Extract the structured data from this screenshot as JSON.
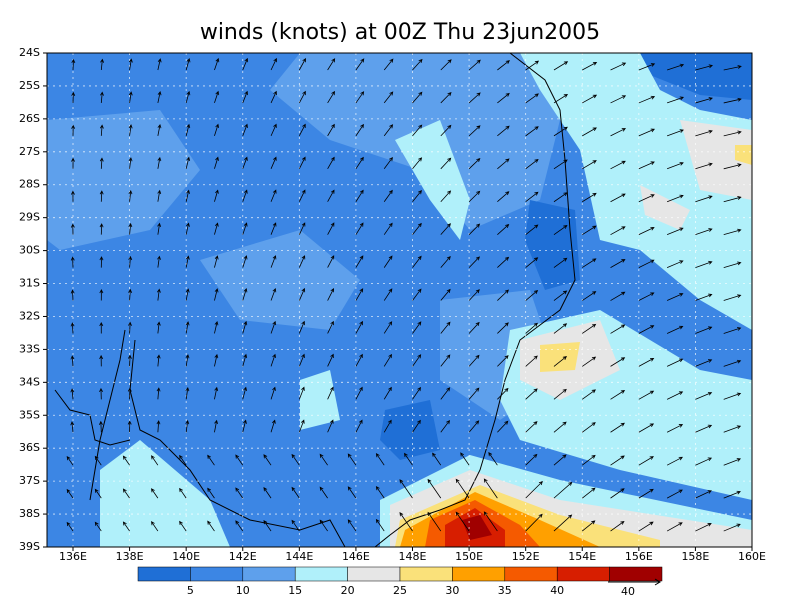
{
  "title": "winds (knots) at 00Z Thu 23jun2005",
  "map": {
    "lat_labels": [
      "24S",
      "25S",
      "26S",
      "27S",
      "28S",
      "29S",
      "30S",
      "31S",
      "32S",
      "33S",
      "34S",
      "35S",
      "36S",
      "37S",
      "38S",
      "39S"
    ],
    "lon_labels": [
      "136E",
      "138E",
      "140E",
      "142E",
      "144E",
      "146E",
      "148E",
      "150E",
      "152E",
      "154E",
      "156E",
      "158E",
      "160E"
    ]
  },
  "colorbar": {
    "colors": [
      "#1f6fd6",
      "#3c86e4",
      "#5ea0ec",
      "#b0f0fa",
      "#e6e6e6",
      "#fae17a",
      "#ffa000",
      "#f55a00",
      "#d71e00",
      "#a00000"
    ],
    "labels": [
      "5",
      "10",
      "15",
      "20",
      "25",
      "30",
      "35",
      "40"
    ]
  },
  "vector_reference": {
    "label": "40"
  }
}
